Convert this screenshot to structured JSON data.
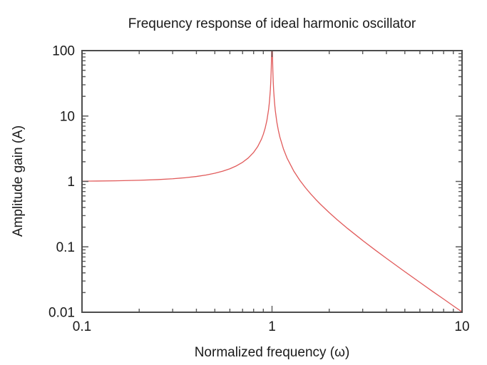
{
  "chart_data": {
    "type": "line",
    "title": "Frequency response of ideal harmonic oscillator",
    "xlabel": "Normalized frequency (ω)",
    "ylabel": "Amplitude gain (A)",
    "xscale": "log",
    "yscale": "log",
    "xlim": [
      0.1,
      10
    ],
    "ylim": [
      0.01,
      100
    ],
    "x_ticks": [
      0.1,
      1,
      10
    ],
    "x_tick_labels": [
      "0.1",
      "1",
      "10"
    ],
    "y_ticks": [
      0.01,
      0.1,
      1,
      10,
      100
    ],
    "y_tick_labels": [
      "0.01",
      "0.1",
      "1",
      "10",
      "100"
    ],
    "grid": false,
    "legend": "none",
    "series": [
      {
        "name": "amplitude-gain",
        "color": "#e15b5b",
        "x": [
          0.1,
          0.12,
          0.15,
          0.2,
          0.25,
          0.3,
          0.35,
          0.4,
          0.45,
          0.5,
          0.55,
          0.6,
          0.65,
          0.7,
          0.75,
          0.8,
          0.84,
          0.88,
          0.9,
          0.92,
          0.94,
          0.96,
          0.97,
          0.98,
          0.985,
          0.99,
          0.993,
          0.995,
          1.005,
          1.007,
          1.01,
          1.015,
          1.02,
          1.03,
          1.04,
          1.06,
          1.08,
          1.1,
          1.15,
          1.2,
          1.3,
          1.4,
          1.5,
          1.6,
          1.7,
          1.8,
          2.0,
          2.2,
          2.5,
          3.0,
          3.5,
          4.0,
          5.0,
          6.0,
          7.0,
          8.0,
          9.0,
          10.0
        ],
        "y": [
          1.0101,
          1.0146,
          1.023,
          1.0417,
          1.0667,
          1.0989,
          1.1396,
          1.1905,
          1.2539,
          1.3333,
          1.4337,
          1.5625,
          1.7316,
          1.9608,
          2.2857,
          2.7778,
          3.3967,
          4.4326,
          5.2632,
          6.5104,
          8.5911,
          12.755,
          16.92,
          25.253,
          33.585,
          50.251,
          71.68,
          100,
          100,
          71.2,
          49.75,
          33.08,
          24.75,
          16.42,
          12.25,
          8.09,
          6.01,
          4.7619,
          3.1008,
          2.2727,
          1.4493,
          1.0417,
          0.8,
          0.641,
          0.5291,
          0.4464,
          0.3333,
          0.2604,
          0.1905,
          0.125,
          0.0889,
          0.0667,
          0.0417,
          0.0286,
          0.0208,
          0.0159,
          0.0125,
          0.0101
        ]
      }
    ],
    "frame_color": "#4d4d4d",
    "tick_color": "#5a5a5a",
    "text_color": "#1a1a1a",
    "background": "#ffffff"
  }
}
